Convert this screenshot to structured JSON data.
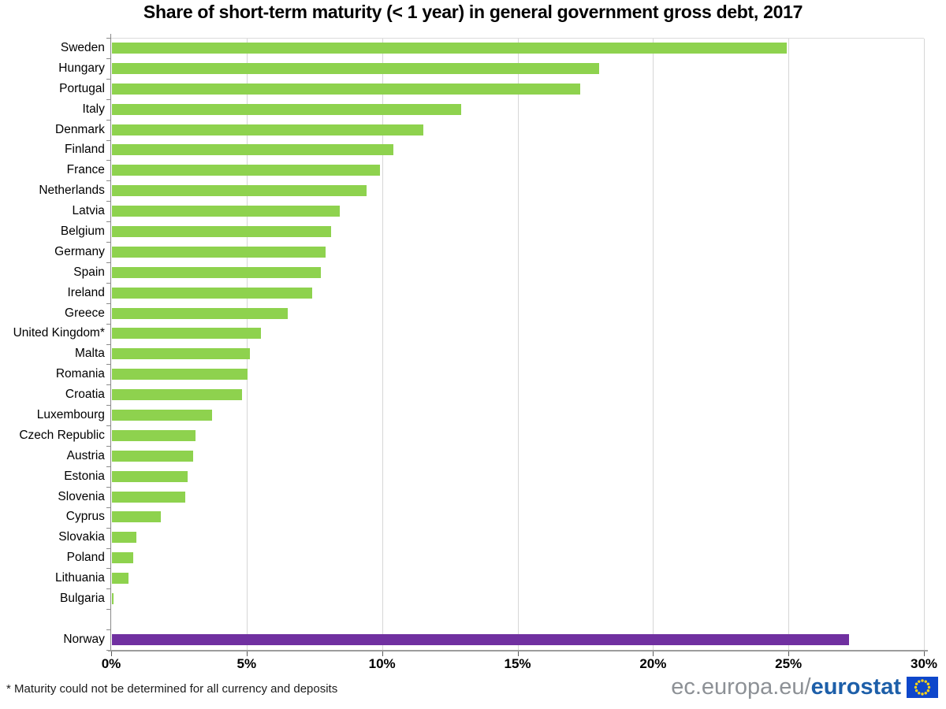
{
  "footnote": "* Maturity could not be determined for all currency and deposits",
  "branding": {
    "url_prefix": "ec.europa.eu/",
    "url_bold": "eurostat",
    "prefix_color": "#8d9196",
    "bold_color": "#1d5fa9",
    "flag_blue": "#0e47cb",
    "star_yellow": "#ffd617"
  },
  "chart_data": {
    "type": "bar",
    "orientation": "horizontal",
    "title": "Share of short-term maturity (< 1 year) in general government gross debt, 2017",
    "xlabel": "",
    "ylabel": "",
    "xlim": [
      0,
      30
    ],
    "grid": true,
    "legend_position": "none",
    "bar_color": "#8ed24e",
    "highlight_color": "#7030a0",
    "highlighted": [
      "Norway"
    ],
    "gap_before": "Norway",
    "x_ticks": [
      {
        "value": 0,
        "label": "0%"
      },
      {
        "value": 5,
        "label": "5%"
      },
      {
        "value": 10,
        "label": "10%"
      },
      {
        "value": 15,
        "label": "15%"
      },
      {
        "value": 20,
        "label": "20%"
      },
      {
        "value": 25,
        "label": "25%"
      },
      {
        "value": 30,
        "label": "30%"
      }
    ],
    "categories": [
      "Sweden",
      "Hungary",
      "Portugal",
      "Italy",
      "Denmark",
      "Finland",
      "France",
      "Netherlands",
      "Latvia",
      "Belgium",
      "Germany",
      "Spain",
      "Ireland",
      "Greece",
      "United Kingdom*",
      "Malta",
      "Romania",
      "Croatia",
      "Luxembourg",
      "Czech Republic",
      "Austria",
      "Estonia",
      "Slovenia",
      "Cyprus",
      "Slovakia",
      "Poland",
      "Lithuania",
      "Bulgaria",
      "Norway"
    ],
    "values": [
      24.9,
      18.0,
      17.3,
      12.9,
      11.5,
      10.4,
      9.9,
      9.4,
      8.4,
      8.1,
      7.9,
      7.7,
      7.4,
      6.5,
      5.5,
      5.1,
      5.0,
      4.8,
      3.7,
      3.1,
      3.0,
      2.8,
      2.7,
      1.8,
      0.9,
      0.8,
      0.6,
      0.05,
      27.2
    ]
  }
}
